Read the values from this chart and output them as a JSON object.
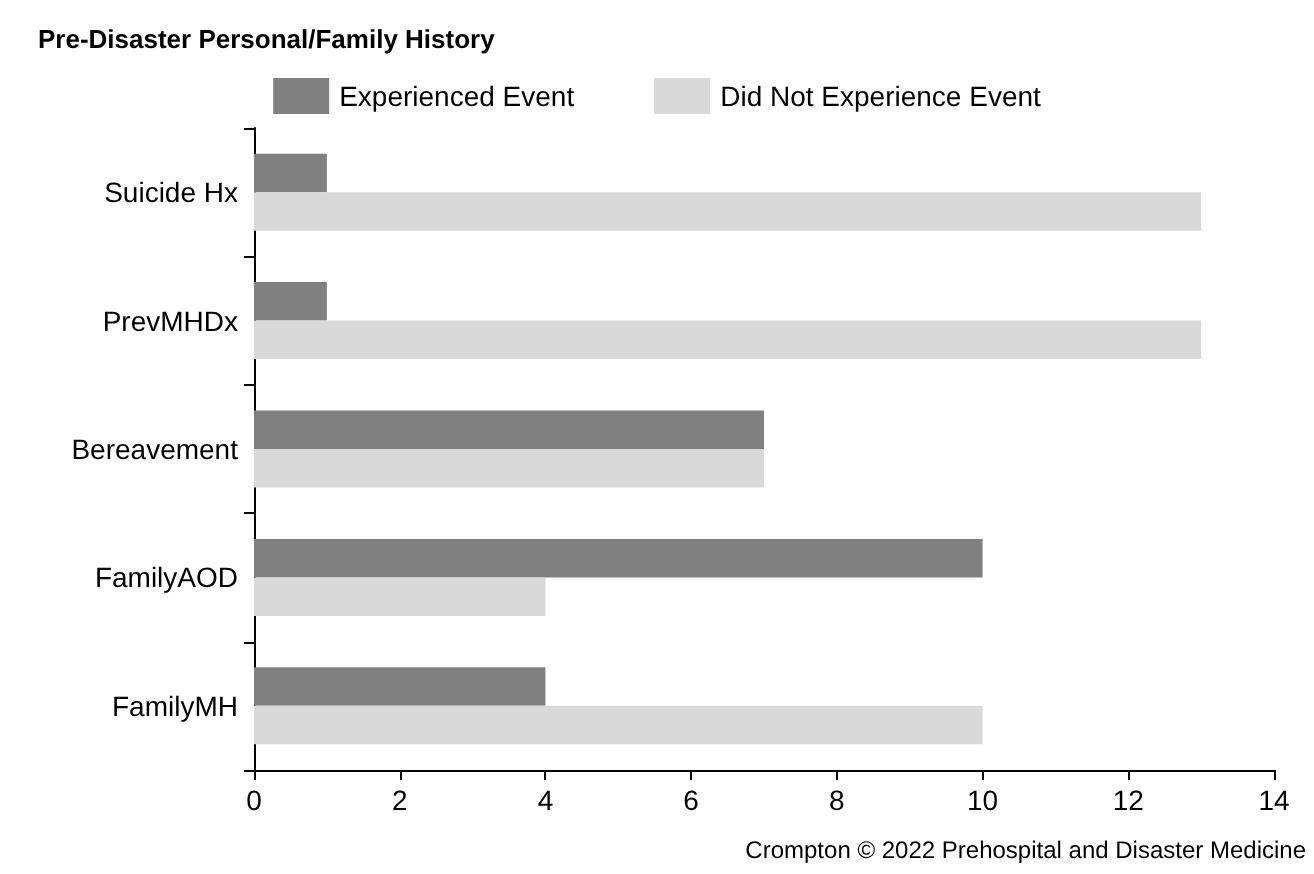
{
  "chart_data": {
    "type": "bar",
    "orientation": "horizontal",
    "title": "Pre-Disaster Personal/Family History",
    "categories": [
      "Suicide Hx",
      "PrevMHDx",
      "Bereavement",
      "FamilyAOD",
      "FamilyMH"
    ],
    "series": [
      {
        "name": "Experienced Event",
        "color": "#808080",
        "values": [
          1,
          1,
          7,
          10,
          4
        ]
      },
      {
        "name": "Did Not Experience Event",
        "color": "#d9d9d9",
        "values": [
          13,
          13,
          7,
          4,
          10
        ]
      }
    ],
    "xlim": [
      0,
      14
    ],
    "xticks": [
      0,
      2,
      4,
      6,
      8,
      10,
      12,
      14
    ],
    "grid": false,
    "legend": "top",
    "annotations": [
      "Crompton © 2022 Prehospital and Disaster Medicine"
    ]
  }
}
